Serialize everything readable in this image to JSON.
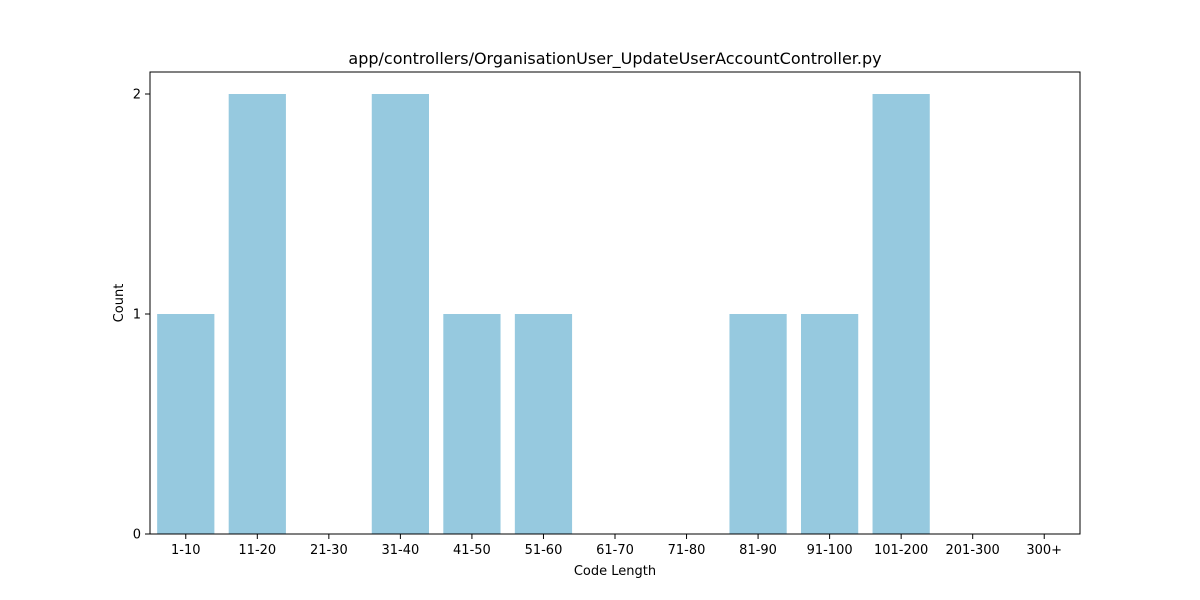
{
  "chart_data": {
    "type": "bar",
    "title": "app/controllers/OrganisationUser_UpdateUserAccountController.py",
    "xlabel": "Code Length",
    "ylabel": "Count",
    "categories": [
      "1-10",
      "11-20",
      "21-30",
      "31-40",
      "41-50",
      "51-60",
      "61-70",
      "71-80",
      "81-90",
      "91-100",
      "101-200",
      "201-300",
      "300+"
    ],
    "values": [
      1,
      2,
      0,
      2,
      1,
      1,
      0,
      0,
      1,
      1,
      2,
      0,
      0
    ],
    "yticks": [
      0,
      1,
      2
    ],
    "ylim": [
      0,
      2.1
    ],
    "grid": false,
    "bar_color": "#96c9df"
  }
}
